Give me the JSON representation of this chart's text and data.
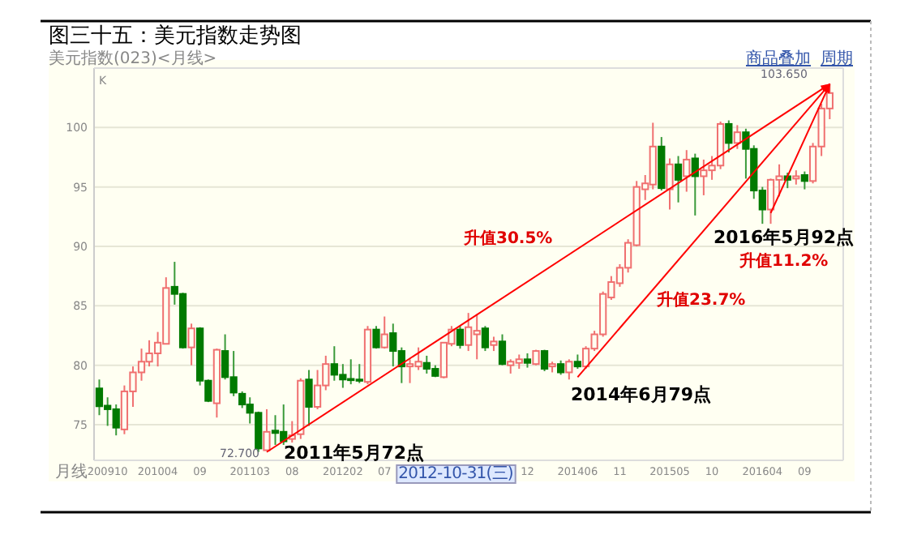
{
  "chart_data": {
    "type": "candlestick",
    "title": "图三十五：美元指数走势图",
    "x": [
      "2009-09",
      "2009-10",
      "2009-11",
      "2009-12",
      "2010-01",
      "2010-02",
      "2010-03",
      "2010-04",
      "2010-05",
      "2010-06",
      "2010-07",
      "2010-08",
      "2010-09",
      "2010-10",
      "2010-11",
      "2010-12",
      "2011-01",
      "2011-02",
      "2011-03",
      "2011-04",
      "2011-05",
      "2011-06",
      "2011-07",
      "2011-08",
      "2011-09",
      "2011-10",
      "2011-11",
      "2011-12",
      "2012-01",
      "2012-02",
      "2012-03",
      "2012-04",
      "2012-05",
      "2012-06",
      "2012-07",
      "2012-08",
      "2012-09",
      "2012-10",
      "2012-11",
      "2012-12",
      "2013-01",
      "2013-02",
      "2013-03",
      "2013-04",
      "2013-05",
      "2013-06",
      "2013-07",
      "2013-08",
      "2013-09",
      "2013-10",
      "2013-11",
      "2013-12",
      "2014-01",
      "2014-02",
      "2014-03",
      "2014-04",
      "2014-05",
      "2014-06",
      "2014-07",
      "2014-08",
      "2014-09",
      "2014-10",
      "2014-11",
      "2014-12",
      "2015-01",
      "2015-02",
      "2015-03",
      "2015-04",
      "2015-05",
      "2015-06",
      "2015-07",
      "2015-08",
      "2015-09",
      "2015-10",
      "2015-11",
      "2015-12",
      "2016-01",
      "2016-02",
      "2016-03",
      "2016-04",
      "2016-05",
      "2016-06",
      "2016-07",
      "2016-08",
      "2016-09",
      "2016-10",
      "2016-11",
      "2016-12"
    ],
    "ohlc": [
      [
        78.05,
        78.8,
        75.8,
        76.55
      ],
      [
        76.6,
        77.3,
        74.9,
        76.3
      ],
      [
        76.3,
        76.7,
        74.1,
        74.75
      ],
      [
        74.6,
        78.3,
        74.2,
        77.8
      ],
      [
        77.8,
        79.9,
        76.5,
        79.4
      ],
      [
        79.4,
        81.4,
        78.7,
        80.3
      ],
      [
        80.3,
        82.1,
        79.9,
        81.0
      ],
      [
        81.0,
        82.8,
        79.9,
        81.9
      ],
      [
        81.8,
        87.4,
        81.8,
        86.5
      ],
      [
        86.6,
        88.7,
        85.1,
        86.0
      ],
      [
        86.0,
        86.1,
        81.4,
        81.5
      ],
      [
        81.5,
        83.5,
        80.0,
        83.1
      ],
      [
        83.1,
        83.2,
        78.3,
        78.7
      ],
      [
        78.7,
        78.8,
        76.9,
        77.0
      ],
      [
        76.8,
        81.4,
        75.6,
        81.3
      ],
      [
        81.2,
        82.6,
        78.8,
        79.0
      ],
      [
        79.0,
        81.2,
        77.4,
        77.7
      ],
      [
        77.6,
        77.8,
        76.4,
        76.7
      ],
      [
        76.7,
        77.3,
        75.1,
        76.0
      ],
      [
        76.0,
        76.1,
        72.7,
        73.0
      ],
      [
        72.85,
        76.3,
        72.8,
        74.4
      ],
      [
        74.5,
        75.8,
        73.3,
        74.3
      ],
      [
        74.4,
        76.7,
        73.3,
        73.6
      ],
      [
        73.8,
        75.3,
        73.5,
        74.1
      ],
      [
        74.2,
        78.9,
        73.8,
        78.7
      ],
      [
        78.8,
        79.6,
        74.9,
        76.5
      ],
      [
        76.5,
        79.6,
        76.3,
        78.3
      ],
      [
        78.3,
        80.8,
        77.9,
        80.1
      ],
      [
        80.1,
        81.6,
        78.7,
        79.2
      ],
      [
        79.2,
        80.1,
        78.1,
        78.8
      ],
      [
        78.85,
        80.5,
        78.4,
        78.8
      ],
      [
        78.8,
        80.1,
        78.5,
        78.75
      ],
      [
        78.6,
        83.3,
        78.4,
        83.0
      ],
      [
        83.0,
        83.3,
        81.4,
        81.5
      ],
      [
        81.5,
        84.1,
        81.4,
        82.6
      ],
      [
        82.7,
        83.5,
        79.9,
        81.2
      ],
      [
        81.2,
        81.5,
        78.5,
        79.9
      ],
      [
        79.9,
        80.5,
        78.5,
        80.1
      ],
      [
        79.9,
        81.5,
        79.6,
        80.3
      ],
      [
        80.2,
        80.8,
        79.3,
        79.7
      ],
      [
        79.7,
        80.0,
        79.0,
        79.1
      ],
      [
        79.0,
        81.9,
        78.9,
        81.9
      ],
      [
        81.8,
        83.3,
        81.6,
        83.0
      ],
      [
        83.0,
        83.3,
        81.4,
        81.7
      ],
      [
        81.7,
        84.4,
        81.2,
        83.2
      ],
      [
        82.6,
        84.3,
        80.5,
        82.9
      ],
      [
        83.1,
        83.3,
        81.2,
        81.5
      ],
      [
        81.7,
        82.4,
        81.2,
        82.0
      ],
      [
        82.0,
        82.6,
        80.0,
        80.1
      ],
      [
        80.0,
        80.5,
        79.3,
        80.3
      ],
      [
        80.2,
        80.9,
        79.7,
        80.5
      ],
      [
        80.5,
        81.0,
        79.8,
        80.2
      ],
      [
        80.1,
        81.3,
        80.0,
        81.2
      ],
      [
        81.2,
        81.3,
        79.5,
        79.7
      ],
      [
        79.9,
        80.3,
        79.4,
        80.1
      ],
      [
        80.1,
        80.4,
        79.2,
        79.4
      ],
      [
        79.4,
        80.5,
        78.8,
        80.3
      ],
      [
        80.3,
        80.9,
        79.7,
        79.9
      ],
      [
        79.9,
        81.6,
        79.7,
        81.4
      ],
      [
        81.4,
        82.9,
        81.2,
        82.6
      ],
      [
        82.6,
        86.2,
        82.4,
        86.0
      ],
      [
        85.7,
        87.5,
        85.5,
        87.0
      ],
      [
        86.9,
        88.5,
        86.6,
        88.2
      ],
      [
        88.2,
        90.6,
        87.8,
        90.3
      ],
      [
        90.1,
        95.5,
        90.0,
        95.0
      ],
      [
        94.8,
        96.0,
        93.9,
        95.3
      ],
      [
        95.2,
        100.4,
        94.8,
        98.4
      ],
      [
        98.4,
        99.2,
        94.7,
        94.9
      ],
      [
        94.8,
        97.4,
        93.1,
        96.9
      ],
      [
        96.9,
        97.6,
        93.7,
        95.6
      ],
      [
        95.9,
        98.1,
        94.6,
        97.3
      ],
      [
        97.4,
        97.8,
        92.6,
        95.9
      ],
      [
        95.9,
        97.3,
        94.3,
        96.4
      ],
      [
        96.4,
        97.6,
        95.6,
        96.8
      ],
      [
        96.8,
        100.5,
        96.5,
        100.3
      ],
      [
        100.3,
        100.6,
        97.9,
        98.7
      ],
      [
        98.7,
        100.2,
        98.2,
        99.6
      ],
      [
        99.6,
        99.9,
        95.7,
        98.2
      ],
      [
        98.2,
        98.5,
        94.0,
        94.7
      ],
      [
        94.7,
        95.0,
        91.9,
        93.1
      ],
      [
        93.1,
        95.7,
        91.9,
        95.6
      ],
      [
        95.6,
        96.9,
        94.2,
        95.9
      ],
      [
        95.9,
        96.2,
        94.9,
        95.6
      ],
      [
        95.7,
        96.4,
        95.2,
        95.9
      ],
      [
        96.0,
        96.3,
        94.8,
        95.5
      ],
      [
        95.5,
        98.7,
        95.3,
        98.4
      ],
      [
        98.4,
        102.0,
        97.6,
        101.6
      ],
      [
        101.6,
        103.65,
        100.7,
        102.9
      ]
    ],
    "xlim": [
      "2009-08-13",
      "2017-01-19"
    ],
    "xticks": [
      {
        "value": "2009-10",
        "label": "200910"
      },
      {
        "value": "2010-04",
        "label": "201004"
      },
      {
        "value": "2010-09",
        "label": "09"
      },
      {
        "value": "2011-03",
        "label": "201103"
      },
      {
        "value": "2011-08",
        "label": "08"
      },
      {
        "value": "2012-02",
        "label": "201202"
      },
      {
        "value": "2012-07",
        "label": "07"
      },
      {
        "value": "2013-12",
        "label": "12"
      },
      {
        "value": "2014-06",
        "label": "201406"
      },
      {
        "value": "2014-11",
        "label": "11"
      },
      {
        "value": "2015-05",
        "label": "201505"
      },
      {
        "value": "2015-10",
        "label": "10"
      },
      {
        "value": "2016-04",
        "label": "201604"
      },
      {
        "value": "2016-09",
        "label": "09"
      }
    ],
    "ylim": [
      72,
      105
    ],
    "yticks": [
      75,
      80,
      85,
      90,
      95,
      100
    ],
    "grid": "y",
    "series": [
      {
        "type": "line",
        "color": "#ff0000",
        "x": [
          "2011-05",
          "2016-12"
        ],
        "values": [
          72.7,
          103.65
        ]
      },
      {
        "type": "line",
        "color": "#ff0000",
        "x": [
          "2014-06",
          "2016-12"
        ],
        "values": [
          79,
          103.65
        ]
      },
      {
        "type": "line",
        "color": "#ff0000",
        "x": [
          "2016-05",
          "2016-12"
        ],
        "values": [
          92.8,
          103.65
        ]
      }
    ],
    "annotations": [
      "美元指数(023)<月线>",
      "商品叠加",
      "周期",
      "K",
      "月线",
      "2012-10-31(三)",
      "72.700",
      "103.650",
      "2011年5月72点",
      "升值30.5%",
      "升值23.7%",
      "2014年6月79点",
      "2016年5月92点",
      "升值11.2%"
    ]
  }
}
